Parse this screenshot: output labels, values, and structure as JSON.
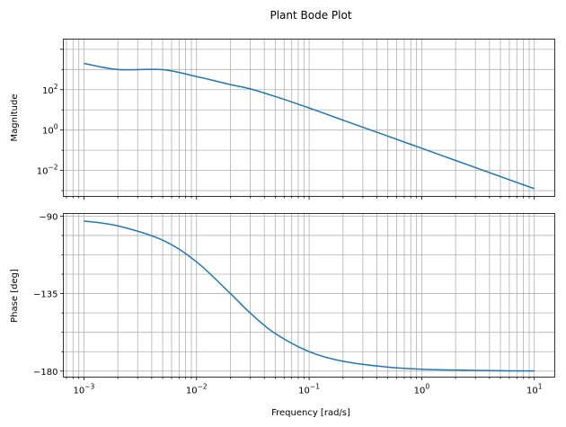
{
  "title": "Plant Bode Plot",
  "colors": {
    "line": "#1f77b4",
    "grid": "#b0b0b0",
    "axis": "#000000",
    "background": "#ffffff"
  },
  "chart_data": [
    {
      "type": "line",
      "ylabel": "Magnitude",
      "xscale": "log",
      "yscale": "log",
      "xlim": [
        0.000656,
        15.2
      ],
      "ylim": [
        0.000517,
        32000
      ],
      "grid": true,
      "yticks": [
        {
          "value": 100,
          "base": "10",
          "exp": "2"
        },
        {
          "value": 1,
          "base": "10",
          "exp": "0"
        },
        {
          "value": 0.01,
          "base": "10",
          "exp": "−2"
        }
      ],
      "series": [
        {
          "x": [
            0.001,
            0.002,
            0.005,
            0.01,
            0.02,
            0.03,
            0.05,
            0.1,
            0.2,
            0.5,
            1,
            2,
            5,
            10
          ],
          "y": [
            1999.5,
            998,
            985,
            447,
            179,
            110,
            46,
            12.4,
            3.1,
            0.499,
            0.125,
            0.0312,
            0.005,
            0.00125
          ]
        }
      ]
    },
    {
      "type": "line",
      "ylabel": "Phase [deg]",
      "xlabel": "Frequency [rad/s]",
      "xscale": "log",
      "xlim": [
        0.000656,
        15.2
      ],
      "ylim": [
        -183.5,
        -88.5
      ],
      "grid": true,
      "yticks": [
        {
          "value": -90,
          "label": "−90"
        },
        {
          "value": -135,
          "label": "−135"
        },
        {
          "value": -180,
          "label": "−180"
        }
      ],
      "xticks": [
        {
          "value": 0.001,
          "base": "10",
          "exp": "−3"
        },
        {
          "value": 0.01,
          "base": "10",
          "exp": "−2"
        },
        {
          "value": 0.1,
          "base": "10",
          "exp": "−1"
        },
        {
          "value": 1,
          "base": "10",
          "exp": "0"
        },
        {
          "value": 10,
          "base": "10",
          "exp": "1"
        }
      ],
      "series": [
        {
          "x": [
            0.001,
            0.002,
            0.005,
            0.01,
            0.02,
            0.03,
            0.05,
            0.1,
            0.2,
            0.5,
            1,
            2,
            5,
            10
          ],
          "y": [
            -92.86,
            -95.7,
            -104.0,
            -116.6,
            -135.0,
            -146.3,
            -158.2,
            -168.7,
            -174.3,
            -177.7,
            -178.9,
            -179.4,
            -179.8,
            -179.9
          ]
        }
      ]
    }
  ]
}
